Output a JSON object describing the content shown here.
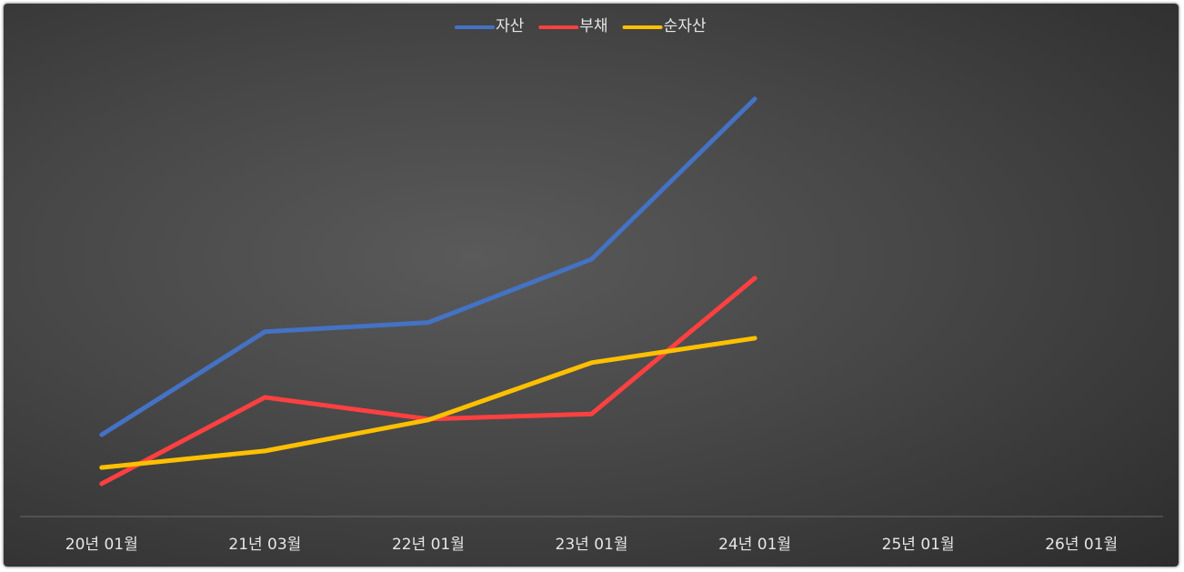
{
  "chart_data": {
    "type": "line",
    "categories": [
      "20년 01월",
      "21년 03월",
      "22년 01월",
      "23년 01월",
      "24년 01월",
      "25년 01월",
      "26년 01월"
    ],
    "series": [
      {
        "name": "자산",
        "color": "#4472c4",
        "values": [
          17.7,
          40.0,
          42.0,
          55.7,
          90.4,
          null,
          null
        ]
      },
      {
        "name": "부채",
        "color": "#ff4040",
        "values": [
          7.1,
          25.8,
          21.1,
          22.2,
          51.6,
          null,
          null
        ]
      },
      {
        "name": "순자산",
        "color": "#ffc000",
        "values": [
          10.6,
          14.2,
          20.9,
          33.3,
          38.6,
          null,
          null
        ]
      }
    ],
    "ylim": [
      0,
      100
    ],
    "legend": "top"
  }
}
